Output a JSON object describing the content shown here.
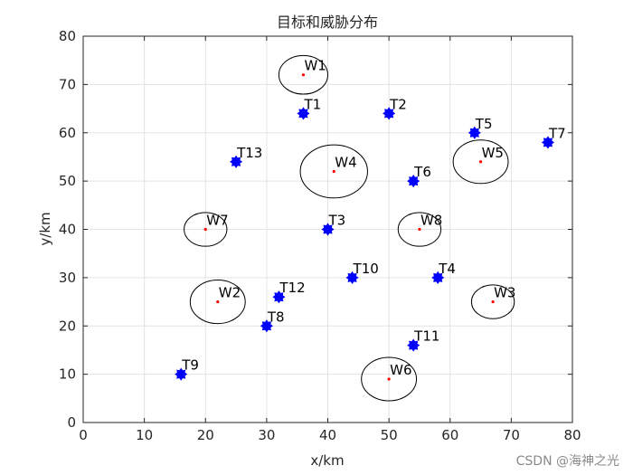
{
  "chart_data": {
    "type": "scatter",
    "title": "目标和威胁分布",
    "xlabel": "x/km",
    "ylabel": "y/km",
    "xlim": [
      0,
      80
    ],
    "ylim": [
      0,
      80
    ],
    "xticks": [
      "0",
      "10",
      "20",
      "30",
      "40",
      "50",
      "60",
      "70",
      "80"
    ],
    "yticks": [
      "0",
      "10",
      "20",
      "30",
      "40",
      "50",
      "60",
      "70",
      "80"
    ],
    "grid": true,
    "colors": {
      "target": "#0000ff",
      "threat_center": "#ff0000",
      "threat_circle": "#000000",
      "grid": "#e3e3e3"
    },
    "series": [
      {
        "marker": "star-filled",
        "points": [
          {
            "label": "T1",
            "x": 36,
            "y": 64
          },
          {
            "label": "T2",
            "x": 50,
            "y": 64
          },
          {
            "label": "T3",
            "x": 40,
            "y": 40
          },
          {
            "label": "T4",
            "x": 58,
            "y": 30
          },
          {
            "label": "T5",
            "x": 64,
            "y": 60
          },
          {
            "label": "T6",
            "x": 54,
            "y": 50
          },
          {
            "label": "T7",
            "x": 76,
            "y": 58
          },
          {
            "label": "T8",
            "x": 30,
            "y": 20
          },
          {
            "label": "T9",
            "x": 16,
            "y": 10
          },
          {
            "label": "T10",
            "x": 44,
            "y": 30
          },
          {
            "label": "T11",
            "x": 54,
            "y": 16
          },
          {
            "label": "T12",
            "x": 32,
            "y": 26
          },
          {
            "label": "T13",
            "x": 25,
            "y": 54
          }
        ]
      },
      {
        "marker": "dot-with-circle",
        "points": [
          {
            "label": "W1",
            "x": 36,
            "y": 72,
            "r": 4
          },
          {
            "label": "W2",
            "x": 22,
            "y": 25,
            "r": 4.5
          },
          {
            "label": "W3",
            "x": 67,
            "y": 25,
            "r": 3.5
          },
          {
            "label": "W4",
            "x": 41,
            "y": 52,
            "r": 5.5
          },
          {
            "label": "W5",
            "x": 65,
            "y": 54,
            "r": 4.5
          },
          {
            "label": "W6",
            "x": 50,
            "y": 9,
            "r": 4.5
          },
          {
            "label": "W7",
            "x": 20,
            "y": 40,
            "r": 3.5
          },
          {
            "label": "W8",
            "x": 55,
            "y": 40,
            "r": 3.5
          }
        ]
      }
    ]
  },
  "watermark": "CSDN @海神之光"
}
